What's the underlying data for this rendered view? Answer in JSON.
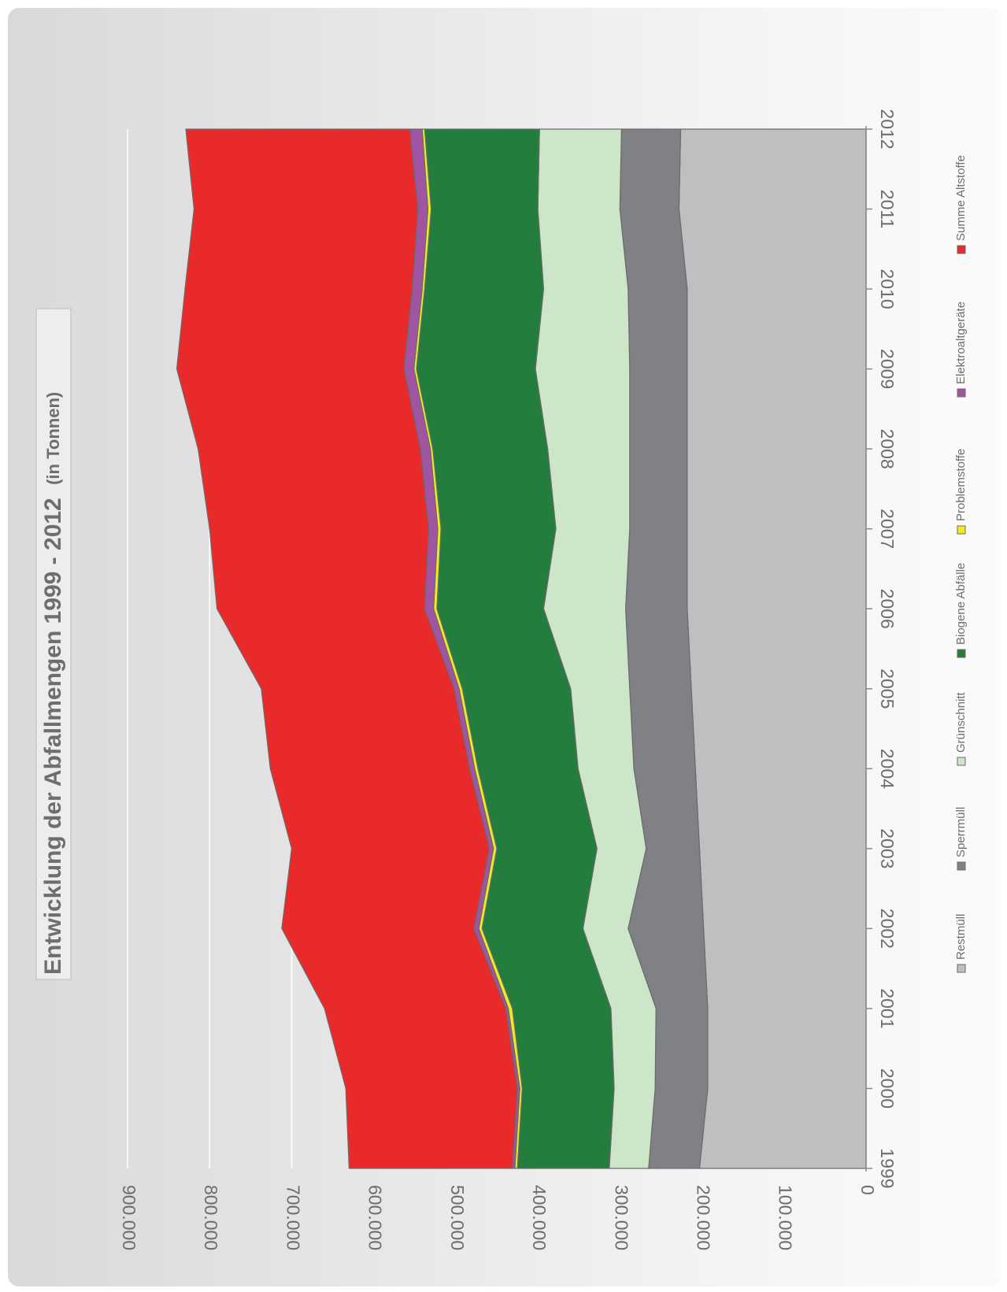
{
  "chart_data": {
    "type": "area",
    "stacked": true,
    "orientation": "rotated-90-clockwise",
    "title": {
      "main": "Entwicklung der Abfallmengen 1999 - 2012",
      "unit": "(in Tonnen)"
    },
    "x": [
      "1999",
      "2000",
      "2001",
      "2002",
      "2003",
      "2004",
      "2005",
      "2006",
      "2007",
      "2008",
      "2009",
      "2010",
      "2011",
      "2012"
    ],
    "y_ticks": [
      "0",
      "100.000",
      "200.000",
      "300.000",
      "400.000",
      "500.000",
      "600.000",
      "700.000",
      "800.000",
      "900.000"
    ],
    "ylim": [
      0,
      900000
    ],
    "grid": true,
    "legend_position": "bottom",
    "series": [
      {
        "name": "Restmüll",
        "color": "#bebfc1",
        "values": [
          203000,
          193000,
          193000,
          198000,
          203000,
          208000,
          213000,
          218000,
          218000,
          218000,
          218000,
          218000,
          228000,
          226000
        ]
      },
      {
        "name": "Sperrmüll",
        "color": "#808184",
        "values": [
          62000,
          64000,
          63000,
          92000,
          65000,
          75000,
          75000,
          75000,
          70000,
          70000,
          70000,
          72000,
          72000,
          72000
        ]
      },
      {
        "name": "Grünschnitt",
        "color": "#cde5c8",
        "values": [
          48000,
          50000,
          55000,
          55000,
          60000,
          68000,
          72000,
          100000,
          90000,
          100000,
          115000,
          103000,
          100000,
          100000
        ]
      },
      {
        "name": "Biogene Abfälle",
        "color": "#237d3c",
        "values": [
          112000,
          112000,
          120000,
          123000,
          122000,
          122000,
          132000,
          130000,
          140000,
          140000,
          145000,
          145000,
          130000,
          140000
        ]
      },
      {
        "name": "Problemstoffe",
        "color": "#f0ec22",
        "values": [
          3000,
          3000,
          5000,
          4000,
          4000,
          4000,
          4000,
          4000,
          4000,
          3000,
          3000,
          3000,
          4000,
          3000
        ]
      },
      {
        "name": "Elektroaltgeräte",
        "color": "#a055a2",
        "values": [
          3000,
          3000,
          3000,
          6000,
          5000,
          6000,
          6000,
          11000,
          11000,
          12000,
          12000,
          12000,
          12000,
          15000
        ]
      },
      {
        "name": "Summe Altstoffe",
        "color": "#e82a2b",
        "values": [
          199000,
          209000,
          221000,
          234000,
          241000,
          243000,
          235000,
          253000,
          267000,
          271000,
          277000,
          277000,
          273000,
          273000
        ]
      }
    ]
  }
}
